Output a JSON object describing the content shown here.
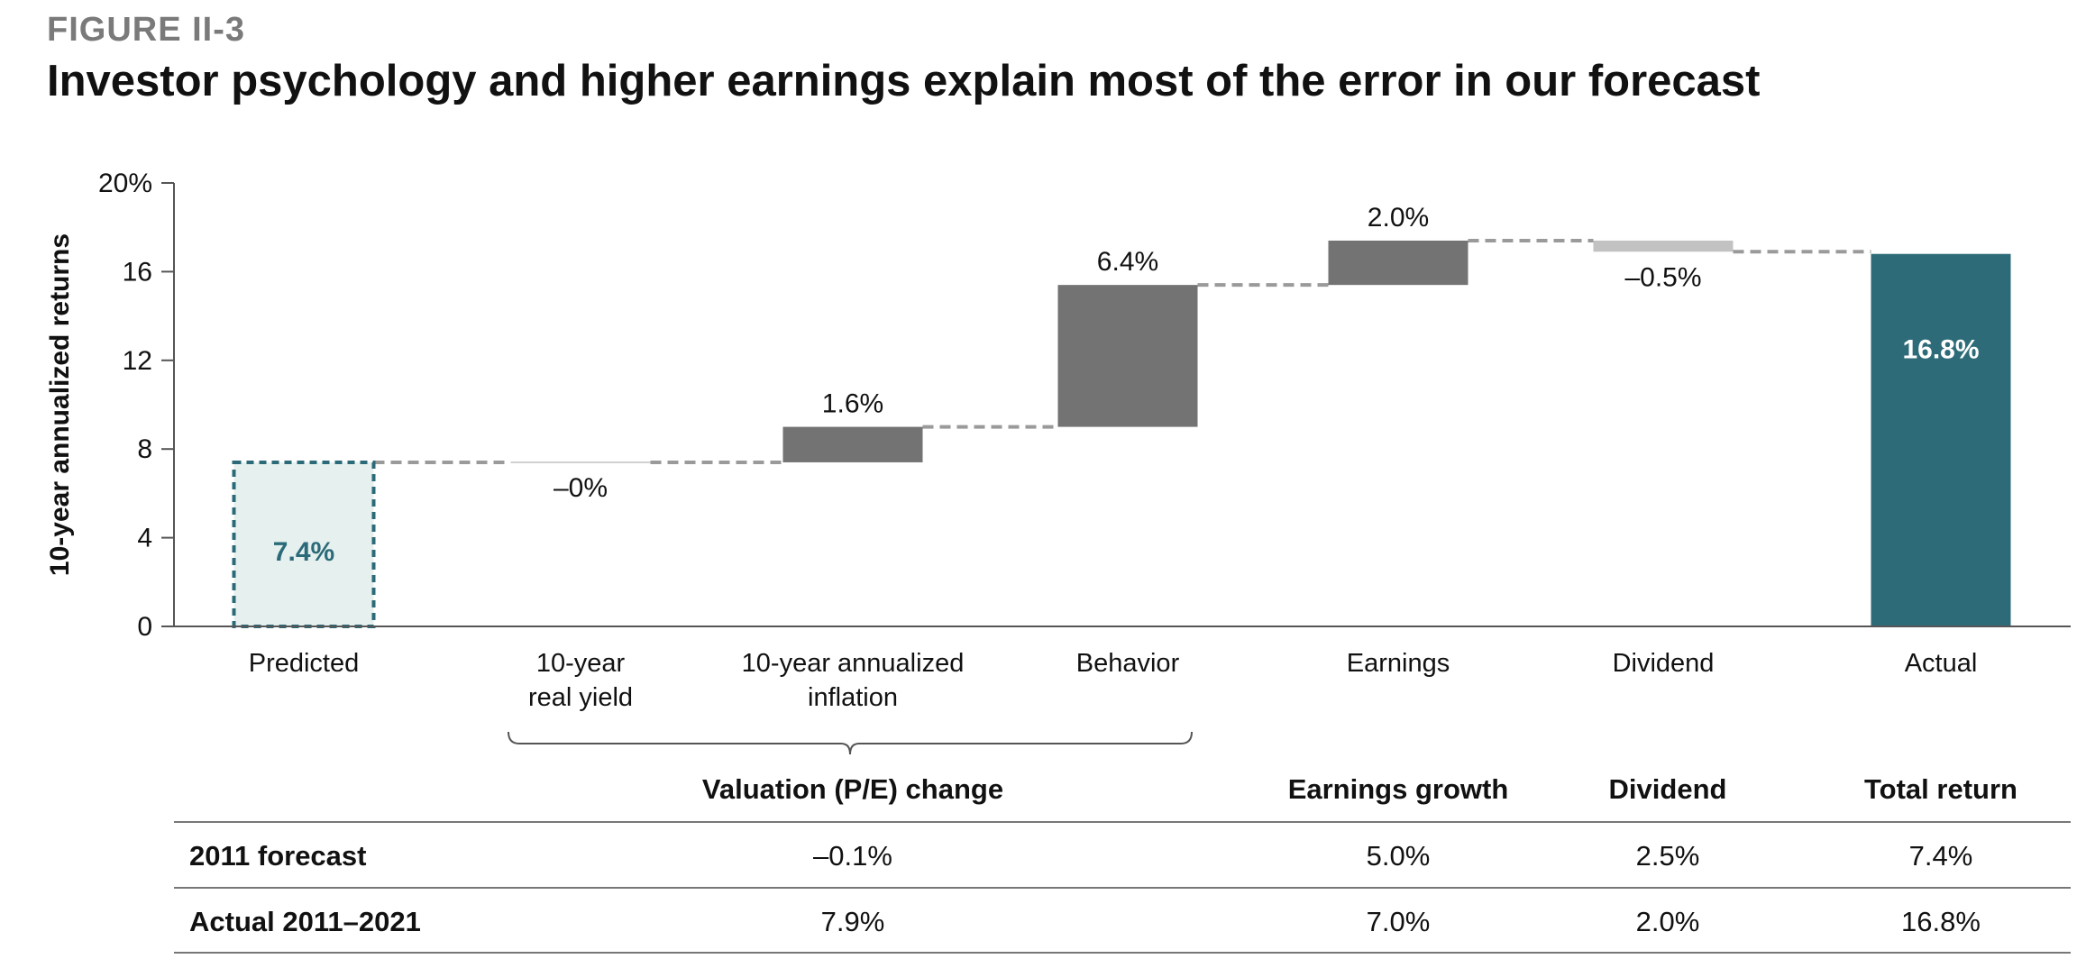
{
  "figure_label": "FIGURE II-3",
  "title": "Investor psychology and higher earnings explain most of the error in our forecast",
  "colors": {
    "predicted_fill": "#e6f0ee",
    "predicted_stroke": "#2b6a78",
    "positive": "#737373",
    "negative": "#c2c2c2",
    "actual": "#2e6b79",
    "connector": "#9a9a9a"
  },
  "chart_data": {
    "type": "bar",
    "subtype": "waterfall",
    "ylabel": "10-year annualized returns",
    "ylim": [
      0,
      20
    ],
    "yticks": [
      0,
      4,
      8,
      12,
      16,
      20
    ],
    "ytick_labels": [
      "0",
      "4",
      "8",
      "12",
      "16",
      "20%"
    ],
    "bars": [
      {
        "category": "Predicted",
        "label_lines": [
          "Predicted"
        ],
        "kind": "predicted",
        "start": 0,
        "end": 7.4,
        "data_label": "7.4%"
      },
      {
        "category": "10-year real yield",
        "label_lines": [
          "10-year",
          "real yield"
        ],
        "kind": "delta",
        "start": 7.4,
        "end": 7.4,
        "data_label": "–0%"
      },
      {
        "category": "10-year annualized inflation",
        "label_lines": [
          "10-year annualized",
          "inflation"
        ],
        "kind": "delta",
        "start": 7.4,
        "end": 9.0,
        "data_label": "1.6%"
      },
      {
        "category": "Behavior",
        "label_lines": [
          "Behavior"
        ],
        "kind": "delta",
        "start": 9.0,
        "end": 15.4,
        "data_label": "6.4%"
      },
      {
        "category": "Earnings",
        "label_lines": [
          "Earnings"
        ],
        "kind": "delta",
        "start": 15.4,
        "end": 17.4,
        "data_label": "2.0%"
      },
      {
        "category": "Dividend",
        "label_lines": [
          "Dividend"
        ],
        "kind": "delta",
        "start": 17.4,
        "end": 16.9,
        "data_label": "–0.5%"
      },
      {
        "category": "Actual",
        "label_lines": [
          "Actual"
        ],
        "kind": "total",
        "start": 0,
        "end": 16.8,
        "data_label": "16.8%"
      }
    ],
    "bracket_label": "Valuation (P/E) change",
    "table": {
      "headers": [
        "",
        "Valuation (P/E) change",
        "Earnings growth",
        "Dividend",
        "Total return"
      ],
      "rows": [
        {
          "label": "2011 forecast",
          "values": [
            "–0.1%",
            "5.0%",
            "2.5%",
            "7.4%"
          ]
        },
        {
          "label": "Actual 2011–2021",
          "values": [
            "7.9%",
            "7.0%",
            "2.0%",
            "16.8%"
          ]
        }
      ]
    }
  }
}
